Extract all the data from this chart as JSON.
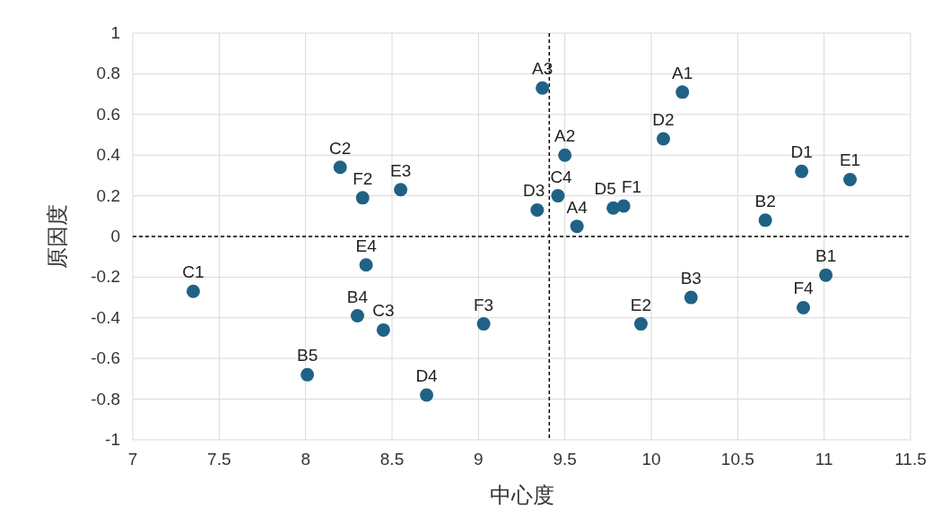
{
  "chart_data": {
    "type": "scatter",
    "xlabel": "中心度",
    "ylabel": "原因度",
    "xlim": [
      7,
      11.5
    ],
    "xticks": [
      7,
      7.5,
      8,
      8.5,
      9,
      9.5,
      10,
      10.5,
      11,
      11.5
    ],
    "ylim": [
      -1,
      1
    ],
    "yticks": [
      -1,
      -0.8,
      -0.6,
      -0.4,
      -0.2,
      0,
      0.2,
      0.4,
      0.6,
      0.8,
      1
    ],
    "grid": true,
    "marker": "circle",
    "series": [
      {
        "color": "#1f6285",
        "x": [
          9.37,
          10.18,
          10.07,
          9.5,
          8.2,
          8.33,
          8.55,
          9.34,
          9.46,
          9.57,
          9.78,
          9.84,
          10.87,
          11.15,
          10.66,
          11.01,
          10.88,
          10.23,
          9.94,
          9.03,
          8.35,
          8.3,
          8.45,
          8.01,
          8.7,
          7.35
        ],
        "values": [
          0.73,
          0.71,
          0.48,
          0.4,
          0.34,
          0.19,
          0.23,
          0.13,
          0.2,
          0.05,
          0.14,
          0.15,
          0.32,
          0.28,
          0.08,
          -0.19,
          -0.35,
          -0.3,
          -0.43,
          -0.43,
          -0.14,
          -0.39,
          -0.46,
          -0.68,
          -0.78,
          -0.27
        ],
        "value_labels": [
          "A3",
          "A1",
          "D2",
          "A2",
          "C2",
          "F2",
          "E3",
          "D3",
          "C4",
          "A4",
          "D5",
          "F1",
          "D1",
          "E1",
          "B2",
          "B1",
          "F4",
          "B3",
          "E2",
          "F3",
          "E4",
          "B4",
          "C3",
          "B5",
          "D4",
          "C1"
        ]
      }
    ],
    "ref_lines": [
      {
        "axis": "x",
        "value": 9.41,
        "line_style": "dashed",
        "color": "#000000"
      },
      {
        "axis": "y",
        "value": 0,
        "line_style": "dashed",
        "color": "#000000"
      }
    ]
  }
}
